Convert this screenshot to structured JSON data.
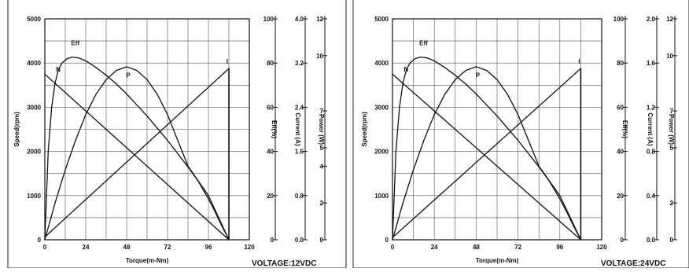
{
  "chart_data": [
    {
      "type": "line",
      "title": "",
      "xlabel": "Torque(m-Nm)",
      "xlim": [
        0,
        120
      ],
      "xticks": [
        "0",
        "24",
        "48",
        "72",
        "96",
        "120"
      ],
      "axes": {
        "speed": {
          "label": "Speed(rpm)",
          "ylim": [
            0,
            5000
          ],
          "ticks": [
            "0",
            "1000",
            "2000",
            "3000",
            "4000",
            "5000"
          ]
        },
        "eff": {
          "label": "Eff(%)",
          "ylim": [
            0,
            100
          ],
          "ticks": [
            "0",
            "20",
            "40",
            "60",
            "80",
            "100"
          ]
        },
        "current": {
          "label": "Current (A)",
          "ylim": [
            0,
            4.0
          ],
          "ticks": [
            "0.0",
            "0.8",
            "1.6",
            "2.4",
            "3.2",
            "4.0"
          ]
        },
        "power": {
          "label": "Power (W)",
          "ylim": [
            0,
            12
          ],
          "ticks": [
            "0",
            "2",
            "4",
            "5",
            "7",
            "10",
            "12"
          ]
        }
      },
      "grid": true,
      "annotation": "VOLTAGE:12VDC",
      "series": [
        {
          "name": "N",
          "axis": "speed",
          "x": [
            0,
            108
          ],
          "values": [
            3750,
            0
          ]
        },
        {
          "name": "Eff",
          "axis": "eff",
          "x": [
            0,
            2,
            4,
            6,
            8,
            10,
            13,
            16,
            20,
            24,
            30,
            36,
            42,
            48,
            54,
            60,
            66,
            72,
            78,
            84,
            90,
            96,
            100,
            104,
            106,
            108
          ],
          "values": [
            0,
            40,
            60,
            71,
            77,
            80,
            82,
            82.7,
            82.3,
            81,
            78,
            74.5,
            70.5,
            66,
            61,
            56,
            50.5,
            45,
            39,
            33,
            26.5,
            18.5,
            12.5,
            6,
            3,
            0
          ]
        },
        {
          "name": "P",
          "axis": "power",
          "x": [
            0,
            6,
            12,
            18,
            24,
            30,
            36,
            42,
            48,
            54,
            60,
            66,
            72,
            78,
            84,
            90,
            96,
            102,
            108
          ],
          "values": [
            0,
            2.0,
            3.8,
            5.4,
            6.8,
            7.9,
            8.7,
            9.2,
            9.4,
            9.2,
            8.7,
            7.9,
            6.8,
            5.4,
            4.0,
            3.2,
            2.4,
            1.2,
            0
          ]
        },
        {
          "name": "I",
          "axis": "current",
          "x": [
            0,
            108
          ],
          "values": [
            0.05,
            3.1
          ]
        }
      ]
    },
    {
      "type": "line",
      "title": "",
      "xlabel": "Torque(m-Nm)",
      "xlim": [
        0,
        120
      ],
      "xticks": [
        "0",
        "24",
        "48",
        "72",
        "96",
        "120"
      ],
      "axes": {
        "speed": {
          "label": "Speed(rpm)",
          "ylim": [
            0,
            5000
          ],
          "ticks": [
            "0",
            "1000",
            "2000",
            "3000",
            "4000",
            "5000"
          ]
        },
        "eff": {
          "label": "Eff(%)",
          "ylim": [
            0,
            100
          ],
          "ticks": [
            "0",
            "20",
            "40",
            "60",
            "80",
            "100"
          ]
        },
        "current": {
          "label": "Current (A)",
          "ylim": [
            0,
            2.0
          ],
          "ticks": [
            "0.0",
            "0.4",
            "0.8",
            "1.2",
            "1.6",
            "2.0"
          ]
        },
        "power": {
          "label": "Power (W)",
          "ylim": [
            0,
            12
          ],
          "ticks": [
            "0",
            "2",
            "5",
            "7",
            "10",
            "12"
          ]
        }
      },
      "grid": true,
      "annotation": "VOLTAGE:24VDC",
      "series": [
        {
          "name": "N",
          "axis": "speed",
          "x": [
            0,
            108
          ],
          "values": [
            3750,
            0
          ]
        },
        {
          "name": "Eff",
          "axis": "eff",
          "x": [
            0,
            2,
            4,
            6,
            8,
            10,
            13,
            16,
            20,
            24,
            30,
            36,
            42,
            48,
            54,
            60,
            66,
            72,
            78,
            84,
            90,
            96,
            100,
            104,
            106,
            108
          ],
          "values": [
            0,
            40,
            60,
            71,
            77,
            80,
            82,
            82.7,
            82.3,
            81,
            78,
            74.5,
            70.5,
            66,
            61,
            56,
            50.5,
            45,
            39,
            33,
            26.5,
            18.5,
            12.5,
            6,
            3,
            0
          ]
        },
        {
          "name": "P",
          "axis": "power",
          "x": [
            0,
            6,
            12,
            18,
            24,
            30,
            36,
            42,
            48,
            54,
            60,
            66,
            72,
            78,
            84,
            90,
            96,
            102,
            108
          ],
          "values": [
            0,
            2.0,
            3.8,
            5.4,
            6.8,
            7.9,
            8.7,
            9.2,
            9.4,
            9.2,
            8.7,
            7.9,
            6.8,
            5.4,
            4.0,
            3.2,
            2.4,
            1.2,
            0
          ]
        },
        {
          "name": "I",
          "axis": "current",
          "x": [
            0,
            108
          ],
          "values": [
            0.02,
            1.55
          ]
        }
      ]
    }
  ]
}
